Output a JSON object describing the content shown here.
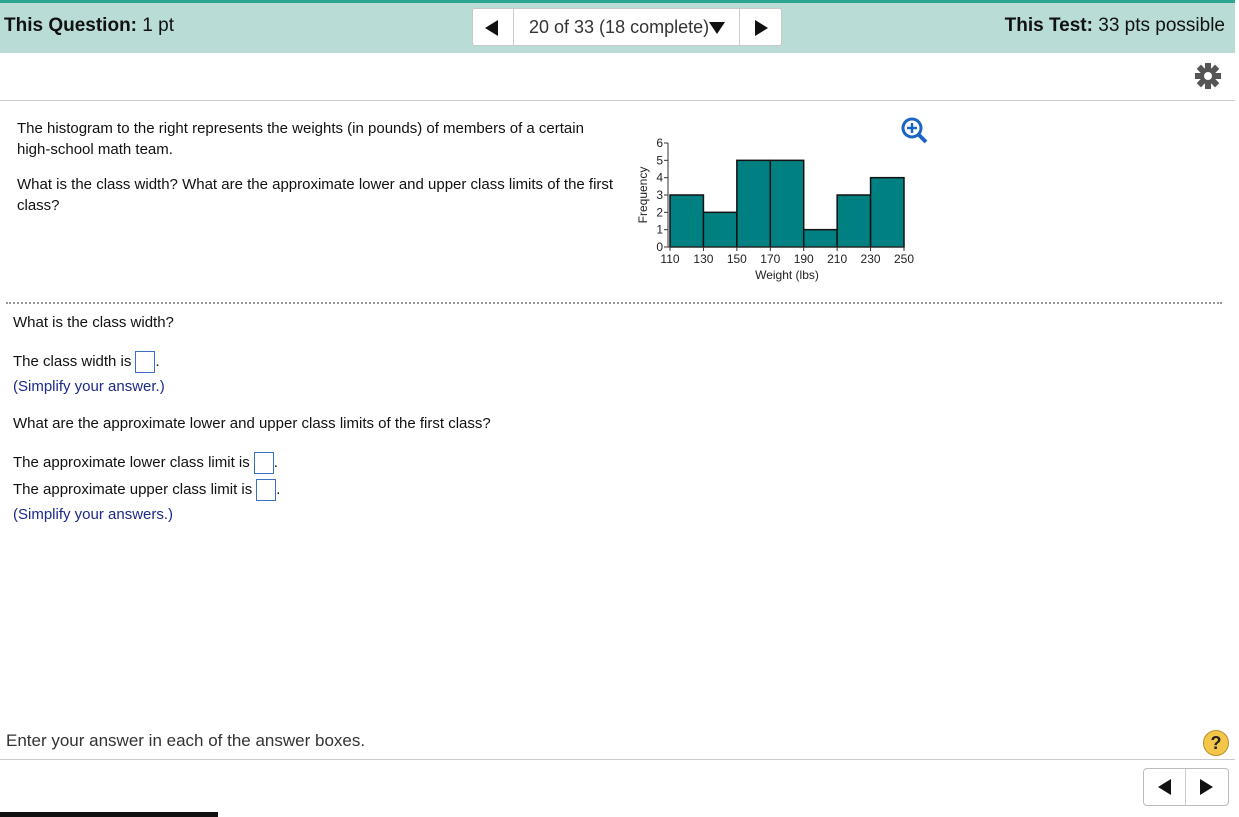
{
  "header": {
    "question_label": "This Question:",
    "question_points": "1 pt",
    "progress": "20 of 33 (18 complete)",
    "test_label": "This Test:",
    "test_points": "33 pts possible"
  },
  "question": {
    "intro": "The histogram to the right represents the weights (in pounds) of members of a certain high-school math team.",
    "prompt": "What is the class width? What are the approximate lower and upper class limits of the first class?"
  },
  "chart_data": {
    "type": "histogram",
    "x_label": "Weight (lbs)",
    "y_label": "Frequency",
    "color": "#008080",
    "bins": [
      110,
      130,
      150,
      170,
      190,
      210,
      230,
      250
    ],
    "values": [
      3,
      2,
      5,
      5,
      1,
      3,
      4
    ],
    "xlim": [
      110,
      250
    ],
    "xticks": [
      110,
      130,
      150,
      170,
      190,
      210,
      230,
      250
    ],
    "ylim": [
      0,
      6
    ],
    "yticks": [
      0,
      1,
      2,
      3,
      4,
      5,
      6
    ]
  },
  "parts": [
    {
      "question": "What is the class width?",
      "answers": [
        {
          "label": "The class width is",
          "after": "."
        }
      ],
      "hint": "(Simplify your answer.)"
    },
    {
      "question": "What are the approximate lower and upper class limits of the first class?",
      "answers": [
        {
          "label": "The approximate lower class limit is",
          "after": "."
        },
        {
          "label": "The approximate upper class limit is",
          "after": "."
        }
      ],
      "hint": "(Simplify your answers.)"
    }
  ],
  "footer": {
    "instruction": "Enter your answer in each of the answer boxes."
  }
}
